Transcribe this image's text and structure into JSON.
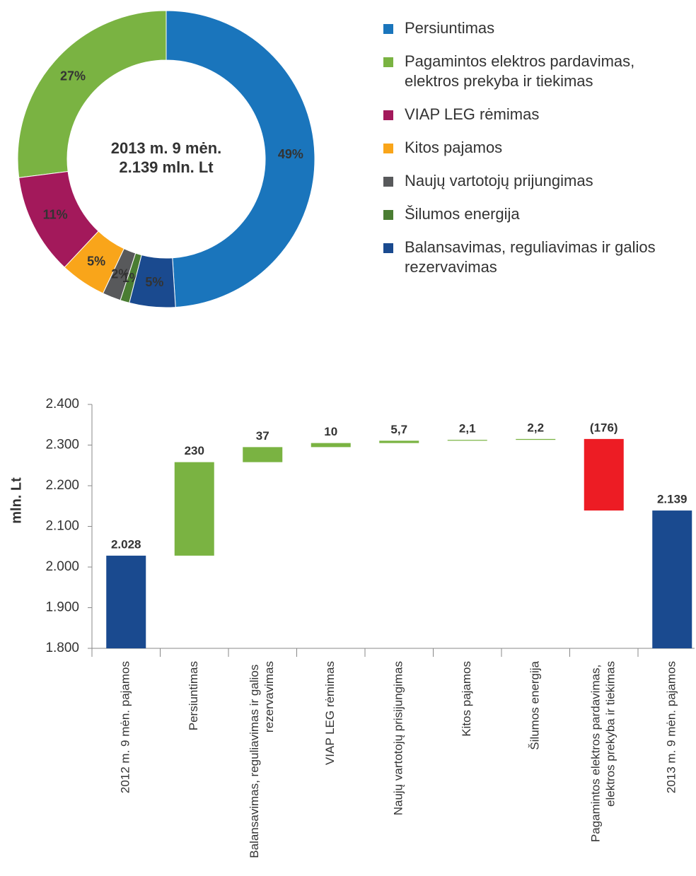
{
  "chart_data": [
    {
      "type": "donut",
      "center_label": [
        "2013 m. 9 mėn.",
        "2.139 mln. Lt"
      ],
      "categories": [
        "Persiuntimas",
        "Pagamintos elektros pardavimas, elektros prekyba ir tiekimas",
        "VIAP LEG rėmimas",
        "Kitos pajamos",
        "Naujų vartotojų prijungimas",
        "Šilumos energija",
        "Balansavimas, reguliavimas ir galios rezervavimas"
      ],
      "values": [
        49,
        27,
        11,
        5,
        2,
        1,
        5
      ],
      "value_labels": [
        "49%",
        "27%",
        "11%",
        "5%",
        "2%",
        "1%",
        "5%"
      ],
      "colors": [
        "#1a75bc",
        "#7ab342",
        "#a3195b",
        "#f9a51a",
        "#58595b",
        "#4a7d32",
        "#1a4a8f"
      ]
    },
    {
      "type": "waterfall",
      "ylabel": "mln. Lt",
      "categories": [
        "2012 m. 9 mėn. pajamos",
        "Persiuntimas",
        "Balansavimas, reguliavimas ir galios rezervavimas",
        "VIAP LEG rėmimas",
        "Naujų vartotojų prisijungimas",
        "Kitos pajamos",
        "Šilumos energija",
        "Pagamintos elektros pardavimas, elektros prekyba ir tiekimas",
        "2013 m. 9 mėn. pajamos"
      ],
      "values": [
        2028,
        230,
        37,
        10,
        5.7,
        2.1,
        2.2,
        -176,
        2139
      ],
      "value_labels": [
        "2.028",
        "230",
        "37",
        "10",
        "5,7",
        "2,1",
        "2,2",
        "(176)",
        "2.139"
      ],
      "colors": [
        "#1a4a8f",
        "#7ab342",
        "#7ab342",
        "#7ab342",
        "#7ab342",
        "#7ab342",
        "#7ab342",
        "#ed1c24",
        "#1a4a8f"
      ],
      "ylim": [
        1800,
        2400
      ],
      "yticks": [
        {
          "value": 1800,
          "label": "1.800"
        },
        {
          "value": 1900,
          "label": "1.900"
        },
        {
          "value": 2000,
          "label": "2.000"
        },
        {
          "value": 2100,
          "label": "2.100"
        },
        {
          "value": 2200,
          "label": "2.200"
        },
        {
          "value": 2300,
          "label": "2.300"
        },
        {
          "value": 2400,
          "label": "2.400"
        }
      ]
    }
  ]
}
